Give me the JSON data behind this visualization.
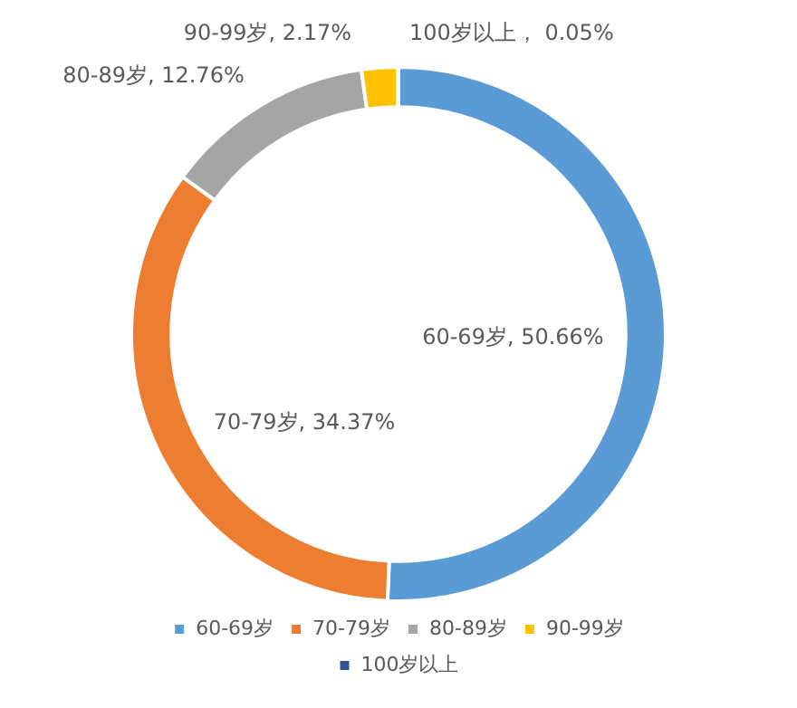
{
  "chart_data": {
    "type": "donut",
    "categories": [
      "60-69岁",
      "70-79岁",
      "80-89岁",
      "90-99岁",
      "100岁以上"
    ],
    "values": [
      50.66,
      34.37,
      12.76,
      2.17,
      0.05
    ],
    "colors": [
      "#5b9bd5",
      "#ed7d31",
      "#a5a5a5",
      "#ffc000",
      "#2f5597"
    ],
    "value_labels": [
      "60-69岁, 50.66%",
      "70-79岁, 34.37%",
      "80-89岁, 12.76%",
      "90-99岁, 2.17%",
      "100岁以上， 0.05%"
    ],
    "legend": "bottom"
  }
}
